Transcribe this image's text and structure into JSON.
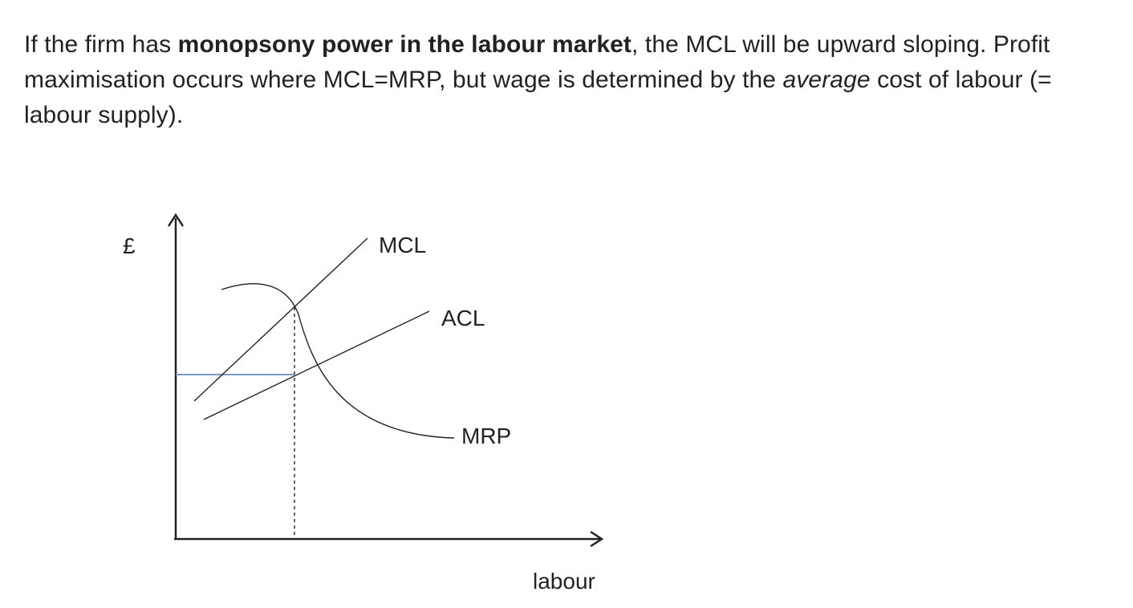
{
  "description": {
    "part1": "If the firm has ",
    "bold": "monopsony power in the labour market",
    "part2": ", the MCL will be upward sloping. Profit maximisation occurs where MCL=MRP, but wage is determined by the ",
    "italic": "average",
    "part3": " cost of labour (= labour supply)."
  },
  "diagram": {
    "y_axis_label": "£",
    "x_axis_label": "labour",
    "curves": {
      "mcl": "MCL",
      "acl": "ACL",
      "mrp": "MRP"
    },
    "colors": {
      "wage_line": "#7f97c2",
      "curve": "#222222"
    }
  }
}
